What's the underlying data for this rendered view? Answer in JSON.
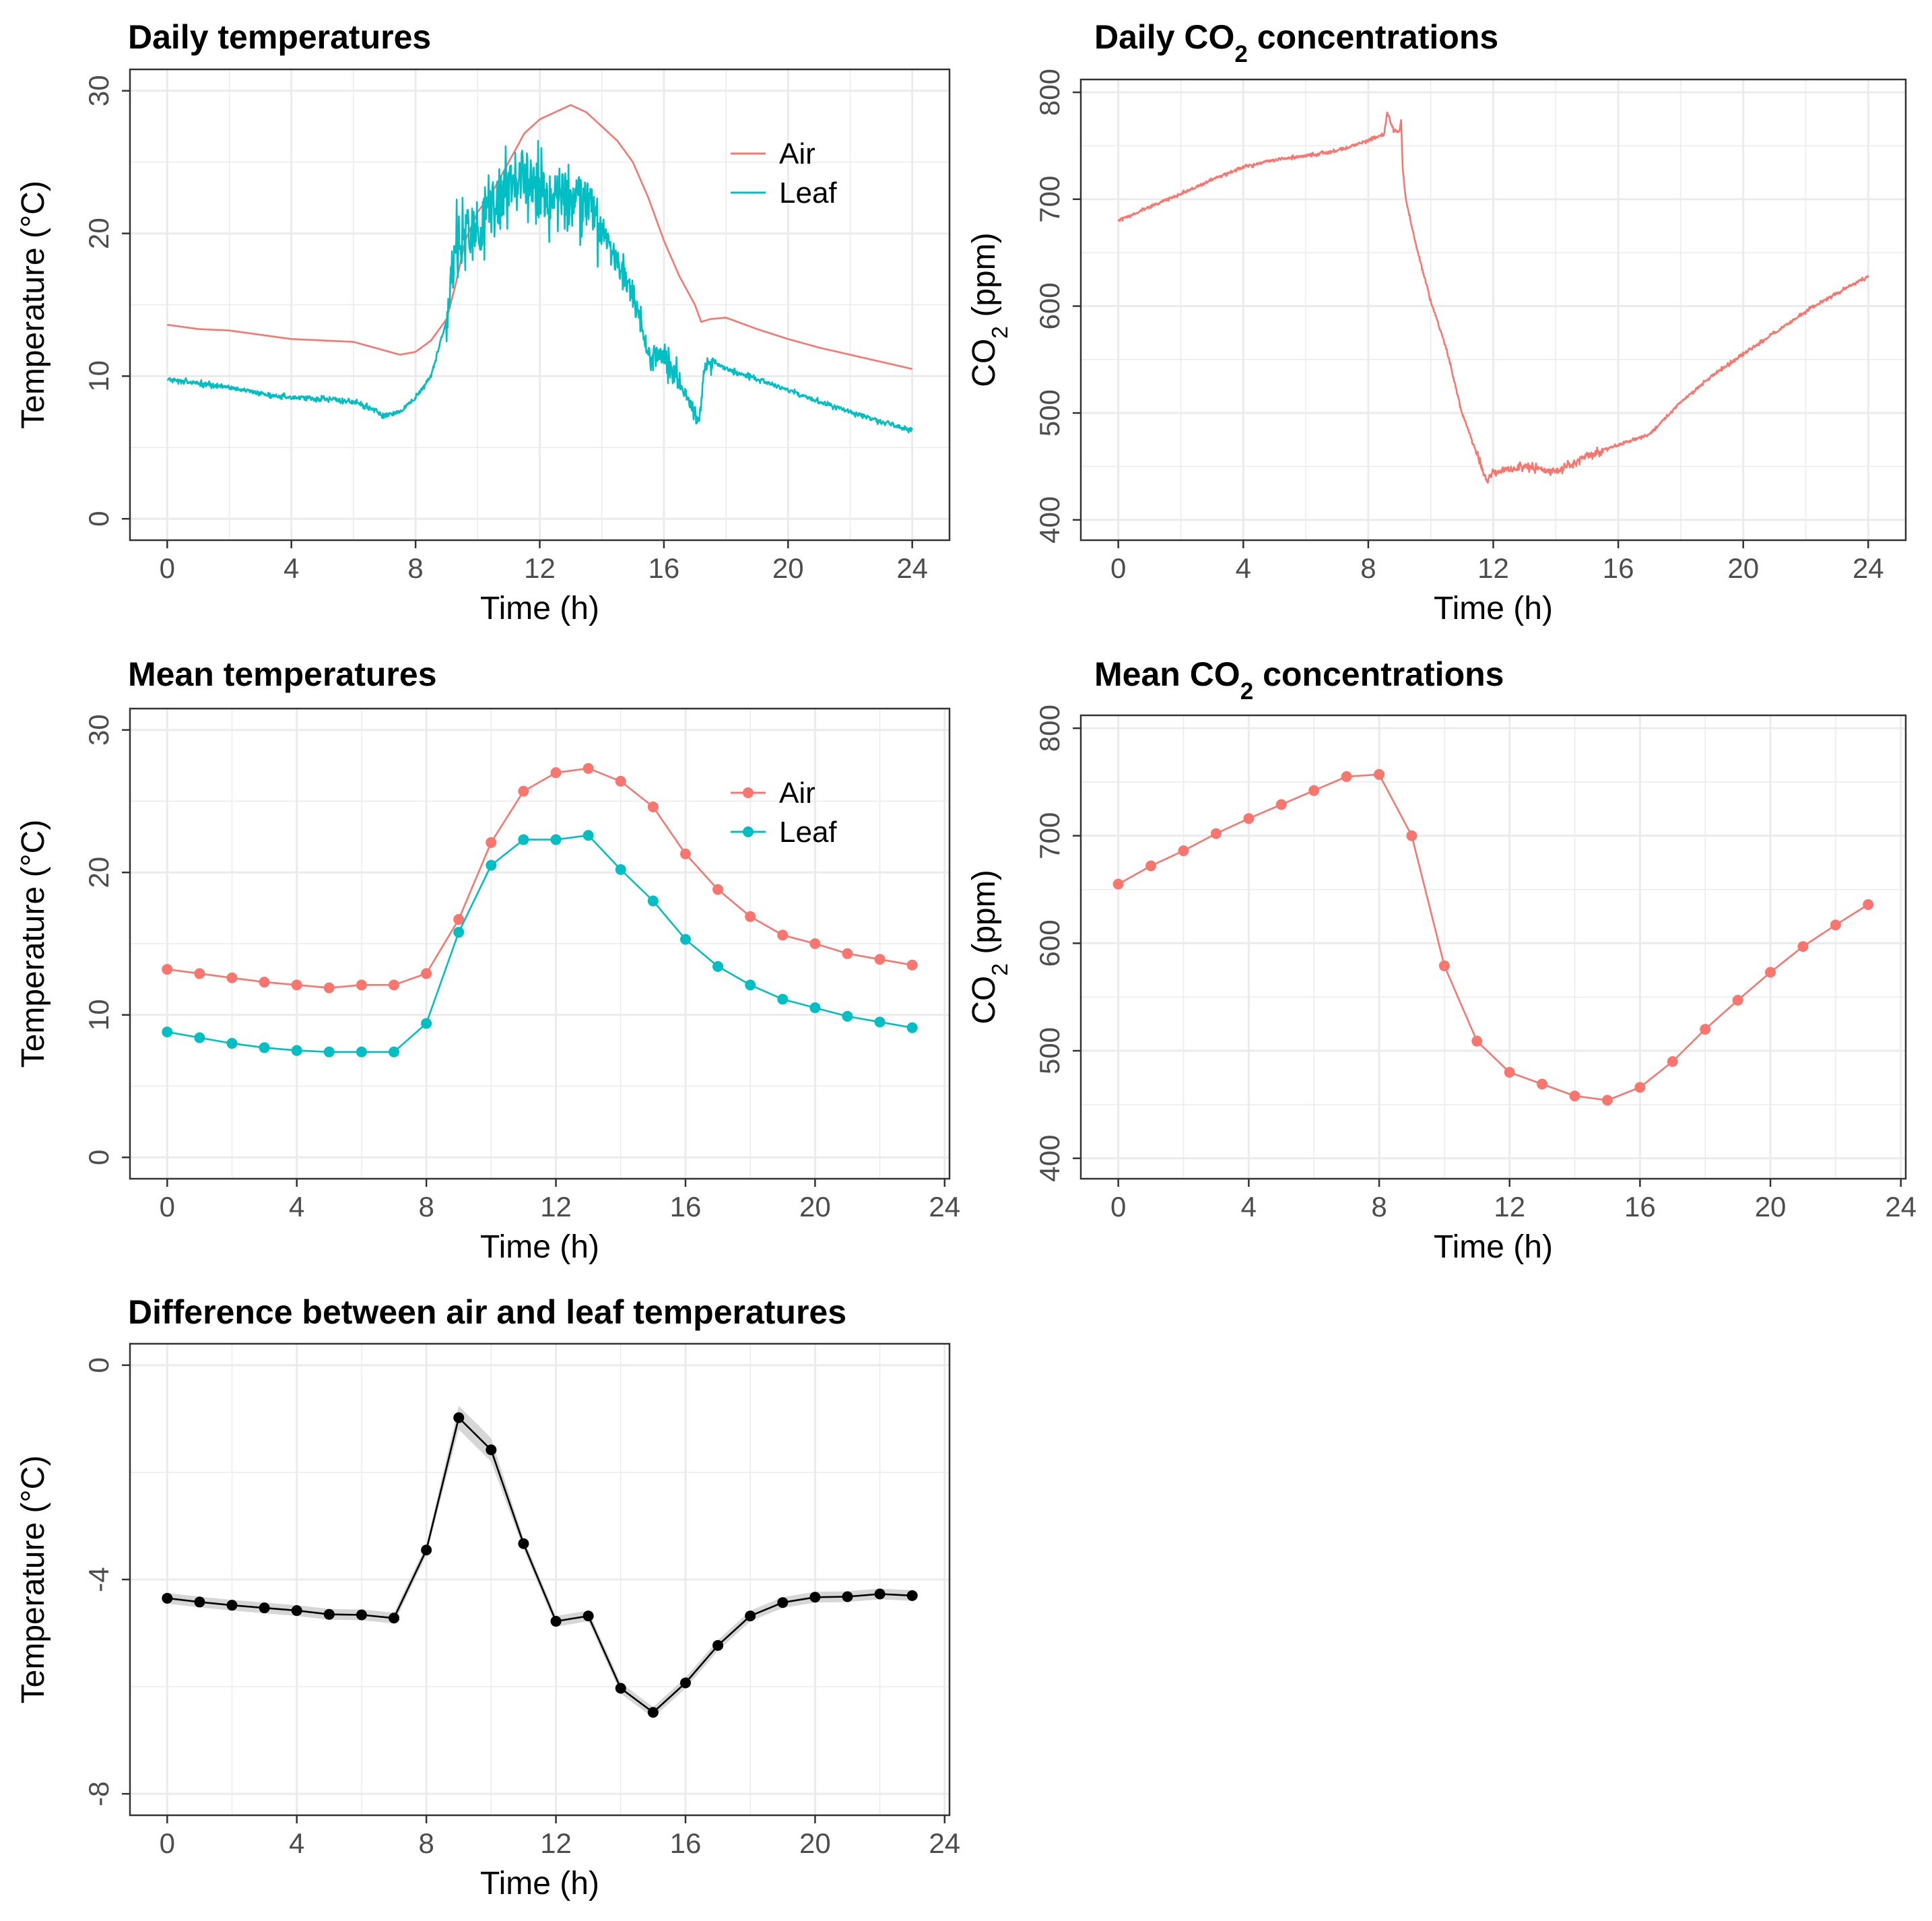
{
  "colors": {
    "air": "#F8766D",
    "leaf": "#00BFC4",
    "diff": "#000000",
    "ribbon": "#cccccc",
    "grid": "#ebebeb",
    "frame": "#333333"
  },
  "chart_data": [
    {
      "id": "daily-temperatures",
      "type": "line",
      "title": "Daily temperatures",
      "xlabel": "Time (h)",
      "ylabel": "Temperature (°C)",
      "xlim": [
        -1.2,
        25.2
      ],
      "ylim": [
        -1.5,
        31.5
      ],
      "xticks": [
        0,
        4,
        8,
        12,
        16,
        20,
        24
      ],
      "yticks": [
        0,
        10,
        20,
        30
      ],
      "grid": true,
      "legend": "top-right",
      "legend_markers": "line",
      "series": [
        {
          "name": "Air",
          "color": "#F8766D",
          "noise": 0,
          "x": [
            0,
            1,
            2,
            3,
            4,
            5,
            6,
            7,
            7.5,
            8,
            8.5,
            9,
            9.3,
            9.6,
            10,
            10.5,
            11,
            11.5,
            12,
            12.5,
            13,
            13.5,
            14,
            14.5,
            15,
            15.5,
            16,
            16.5,
            17,
            17.2,
            17.5,
            18,
            19,
            20,
            21,
            22,
            23,
            24
          ],
          "y": [
            13.6,
            13.3,
            13.2,
            12.9,
            12.6,
            12.5,
            12.4,
            11.8,
            11.5,
            11.7,
            12.5,
            14.0,
            16.5,
            19.5,
            21.5,
            23.0,
            25.0,
            27.0,
            28.0,
            28.5,
            29.0,
            28.5,
            27.5,
            26.5,
            25.0,
            22.5,
            19.5,
            17.0,
            15.0,
            13.8,
            14.0,
            14.1,
            13.3,
            12.6,
            12.0,
            11.5,
            11.0,
            10.5
          ]
        },
        {
          "name": "Leaf",
          "color": "#00BFC4",
          "noise": 1,
          "x": [
            0,
            1,
            2,
            3,
            4,
            5,
            6,
            6.5,
            7,
            7.5,
            8,
            8.5,
            9,
            9.3,
            9.6,
            10,
            10.5,
            11,
            11.5,
            12,
            12.5,
            13,
            13.5,
            14,
            14.5,
            15,
            15.4,
            15.6,
            16,
            16.5,
            17,
            17.1,
            17.3,
            17.6,
            18,
            19,
            20,
            21,
            22,
            23,
            24
          ],
          "y": [
            9.8,
            9.5,
            9.2,
            8.8,
            8.5,
            8.4,
            8.2,
            7.8,
            7.2,
            7.5,
            8.5,
            10.0,
            14.0,
            19.0,
            20.5,
            20.0,
            22.0,
            23.0,
            24.5,
            23.0,
            22.5,
            23.0,
            22.0,
            20.5,
            18.0,
            15.5,
            12.5,
            11.0,
            11.5,
            9.5,
            7.5,
            6.5,
            10.5,
            11.0,
            10.5,
            9.8,
            9.0,
            8.2,
            7.5,
            6.8,
            6.2
          ]
        }
      ]
    },
    {
      "id": "daily-co2",
      "type": "line",
      "title": "Daily CO2 concentrations",
      "title_parts": {
        "before": "Daily CO",
        "sub": "2",
        "after": " concentrations"
      },
      "xlabel": "Time (h)",
      "ylabel": "CO2 (ppm)",
      "ylabel_parts": {
        "before": "CO",
        "sub": "2",
        "after": " (ppm)"
      },
      "xlim": [
        -1.2,
        25.2
      ],
      "ylim": [
        381,
        812
      ],
      "xticks": [
        0,
        4,
        8,
        12,
        16,
        20,
        24
      ],
      "yticks": [
        400,
        500,
        600,
        700,
        800
      ],
      "grid": true,
      "series": [
        {
          "name": "",
          "color": "#F8766D",
          "noise": 0.5,
          "x": [
            0,
            1,
            2,
            3,
            4,
            5,
            6,
            7,
            8,
            8.5,
            8.6,
            8.8,
            9.0,
            9.05,
            9.1,
            9.2,
            9.5,
            10,
            10.5,
            11,
            11.5,
            11.8,
            12,
            13,
            14,
            15,
            16,
            17,
            18,
            19,
            20,
            21,
            22,
            23,
            24
          ],
          "y": [
            680,
            693,
            705,
            718,
            730,
            737,
            741,
            745,
            755,
            760,
            782,
            765,
            763,
            775,
            730,
            700,
            660,
            605,
            560,
            500,
            460,
            435,
            445,
            450,
            445,
            460,
            470,
            480,
            510,
            535,
            555,
            575,
            595,
            612,
            628
          ]
        }
      ]
    },
    {
      "id": "mean-temperatures",
      "type": "line",
      "title": "Mean temperatures",
      "xlabel": "Time (h)",
      "ylabel": "Temperature (°C)",
      "xlim": [
        -1.15,
        24.15
      ],
      "ylim": [
        -1.5,
        31.5
      ],
      "xticks": [
        0,
        4,
        8,
        12,
        16,
        20,
        24
      ],
      "yticks": [
        0,
        10,
        20,
        30
      ],
      "grid": true,
      "legend": "top-right",
      "legend_markers": "line-point",
      "series": [
        {
          "name": "Air",
          "color": "#F8766D",
          "x": [
            0,
            1,
            2,
            3,
            4,
            5,
            6,
            7,
            8,
            9,
            10,
            11,
            12,
            13,
            14,
            15,
            16,
            17,
            18,
            19,
            20,
            21,
            22,
            23
          ],
          "y": [
            13.2,
            12.9,
            12.6,
            12.3,
            12.1,
            11.9,
            12.1,
            12.1,
            12.9,
            16.7,
            22.1,
            25.7,
            27.0,
            27.3,
            26.4,
            24.6,
            21.3,
            18.8,
            16.9,
            15.6,
            15.0,
            14.3,
            13.9,
            13.5
          ]
        },
        {
          "name": "Leaf",
          "color": "#00BFC4",
          "x": [
            0,
            1,
            2,
            3,
            4,
            5,
            6,
            7,
            8,
            9,
            10,
            11,
            12,
            13,
            14,
            15,
            16,
            17,
            18,
            19,
            20,
            21,
            22,
            23
          ],
          "y": [
            8.8,
            8.4,
            8.0,
            7.7,
            7.5,
            7.4,
            7.4,
            7.4,
            9.4,
            15.8,
            20.5,
            22.3,
            22.3,
            22.6,
            20.2,
            18.0,
            15.3,
            13.4,
            12.1,
            11.1,
            10.5,
            9.9,
            9.5,
            9.1
          ]
        }
      ]
    },
    {
      "id": "mean-co2",
      "type": "line",
      "title": "Mean CO2 concentrations",
      "title_parts": {
        "before": "Mean CO",
        "sub": "2",
        "after": " concentrations"
      },
      "xlabel": "Time (h)",
      "ylabel": "CO2 (ppm)",
      "ylabel_parts": {
        "before": "CO",
        "sub": "2",
        "after": " (ppm)"
      },
      "xlim": [
        -1.15,
        24.15
      ],
      "ylim": [
        381,
        812
      ],
      "xticks": [
        0,
        4,
        8,
        12,
        16,
        20,
        24
      ],
      "yticks": [
        400,
        500,
        600,
        700,
        800
      ],
      "grid": true,
      "series": [
        {
          "name": "",
          "color": "#F8766D",
          "x": [
            0,
            1,
            2,
            3,
            4,
            5,
            6,
            7,
            8,
            9,
            10,
            11,
            12,
            13,
            14,
            15,
            16,
            17,
            18,
            19,
            20,
            21,
            22,
            23
          ],
          "y": [
            655,
            672,
            686,
            702,
            716,
            729,
            742,
            755,
            757,
            700,
            579,
            509,
            480,
            469,
            458,
            454,
            466,
            490,
            520,
            547,
            573,
            597,
            617,
            636
          ]
        }
      ]
    },
    {
      "id": "temperature-difference",
      "type": "line",
      "title": "Difference between air and leaf temperatures",
      "xlabel": "Time (h)",
      "ylabel": "Temperature (°C)",
      "xlim": [
        -1.15,
        24.15
      ],
      "ylim": [
        -8.4,
        0.4
      ],
      "xticks": [
        0,
        4,
        8,
        12,
        16,
        20,
        24
      ],
      "yticks": [
        -8,
        -4,
        0
      ],
      "grid": true,
      "series": [
        {
          "name": "",
          "color": "#000000",
          "ribbon": true,
          "x": [
            0,
            1,
            2,
            3,
            4,
            5,
            6,
            7,
            8,
            9,
            10,
            11,
            12,
            13,
            14,
            15,
            16,
            17,
            18,
            19,
            20,
            21,
            22,
            23
          ],
          "y": [
            -4.35,
            -4.42,
            -4.48,
            -4.53,
            -4.58,
            -4.65,
            -4.66,
            -4.72,
            -3.45,
            -0.98,
            -1.58,
            -3.33,
            -4.78,
            -4.68,
            -6.03,
            -6.48,
            -5.93,
            -5.23,
            -4.68,
            -4.43,
            -4.33,
            -4.32,
            -4.27,
            -4.3
          ]
        }
      ]
    }
  ]
}
